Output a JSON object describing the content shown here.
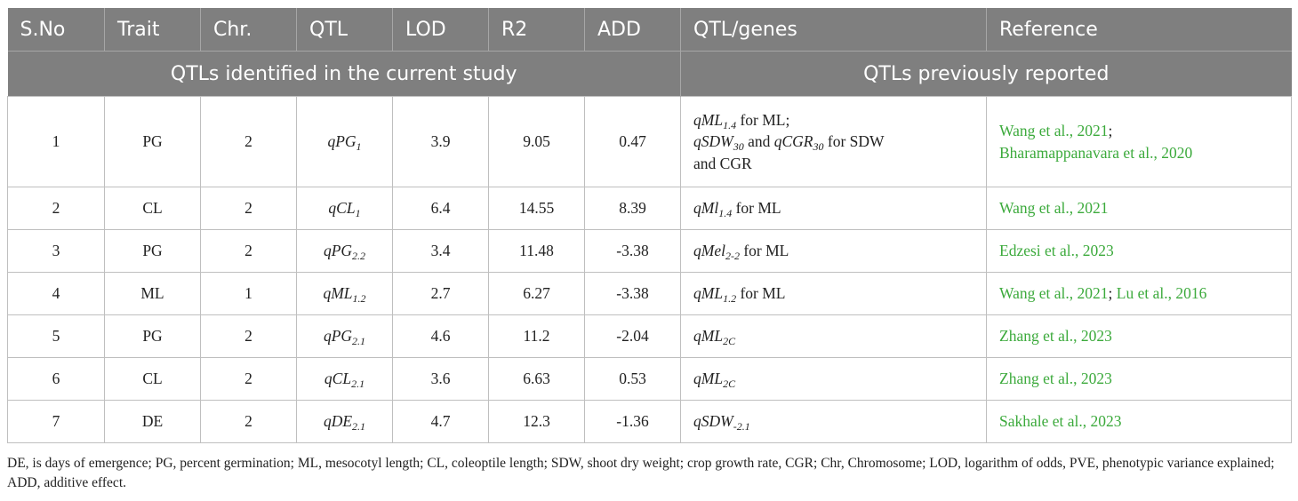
{
  "headers": [
    "S.No",
    "Trait",
    "Chr.",
    "QTL",
    "LOD",
    "R2",
    "ADD",
    "QTL/genes",
    "Reference"
  ],
  "group_left": "QTLs identified in the current study",
  "group_right": "QTLs previously reported",
  "rows": [
    {
      "sno": "1",
      "trait": "PG",
      "chr": "2",
      "qtl": {
        "base": "qPG",
        "sub": "1"
      },
      "lod": "3.9",
      "r2": "9.05",
      "add": "0.47",
      "genes": {
        "line1_base": "qML",
        "line1_sub": "1.4",
        "line1_rest": " for ML;",
        "line2_base_a": "qSDW",
        "line2_sub_a": "30",
        "line2_mid": " and ",
        "line2_base_b": "qCGR",
        "line2_sub_b": "30",
        "line2_rest": " for SDW",
        "line3": "and CGR"
      },
      "ref": {
        "a": "Wang et al., 2021",
        "sep": ";",
        "b": "Bharamappanavara et al., 2020"
      }
    },
    {
      "sno": "2",
      "trait": "CL",
      "chr": "2",
      "qtl": {
        "base": "qCL",
        "sub": "1"
      },
      "lod": "6.4",
      "r2": "14.55",
      "add": "8.39",
      "genes": {
        "base": "qMl",
        "sub": "1.4",
        "rest": " for ML"
      },
      "ref": {
        "a": "Wang et al., 2021"
      }
    },
    {
      "sno": "3",
      "trait": "PG",
      "chr": "2",
      "qtl": {
        "base": "qPG",
        "sub": "2.2"
      },
      "lod": "3.4",
      "r2": "11.48",
      "add": "-3.38",
      "genes": {
        "base": "qMel",
        "sub": "2-2",
        "rest": " for ML"
      },
      "ref": {
        "a": "Edzesi et al., 2023"
      }
    },
    {
      "sno": "4",
      "trait": "ML",
      "chr": "1",
      "qtl": {
        "base": "qML",
        "sub": "1.2"
      },
      "lod": "2.7",
      "r2": "6.27",
      "add": "-3.38",
      "genes": {
        "base": "qML",
        "sub": "1.2",
        "rest": " for ML"
      },
      "ref": {
        "a": "Wang et al., 2021",
        "sep": "; ",
        "b": "Lu et al., 2016"
      }
    },
    {
      "sno": "5",
      "trait": "PG",
      "chr": "2",
      "qtl": {
        "base": "qPG",
        "sub": "2.1"
      },
      "lod": "4.6",
      "r2": "11.2",
      "add": "-2.04",
      "genes": {
        "base": "qML",
        "sub": "2C",
        "rest": ""
      },
      "ref": {
        "a": "Zhang et al., 2023"
      }
    },
    {
      "sno": "6",
      "trait": "CL",
      "chr": "2",
      "qtl": {
        "base": "qCL",
        "sub": "2.1"
      },
      "lod": "3.6",
      "r2": "6.63",
      "add": "0.53",
      "genes": {
        "base": "qML",
        "sub": "2C",
        "rest": ""
      },
      "ref": {
        "a": "Zhang et al., 2023"
      }
    },
    {
      "sno": "7",
      "trait": "DE",
      "chr": "2",
      "qtl": {
        "base": "qDE",
        "sub": "2.1"
      },
      "lod": "4.7",
      "r2": "12.3",
      "add": "-1.36",
      "genes": {
        "base": "qSDW",
        "sub": "-2.1",
        "rest": ""
      },
      "ref": {
        "a": "Sakhale et al., 2023"
      }
    }
  ],
  "footnote": "DE, is days of emergence; PG, percent germination; ML, mesocotyl length; CL, coleoptile length; SDW, shoot dry weight; crop growth rate, CGR; Chr, Chromosome; LOD, logarithm of odds, PVE, phenotypic variance explained; ADD, additive effect."
}
